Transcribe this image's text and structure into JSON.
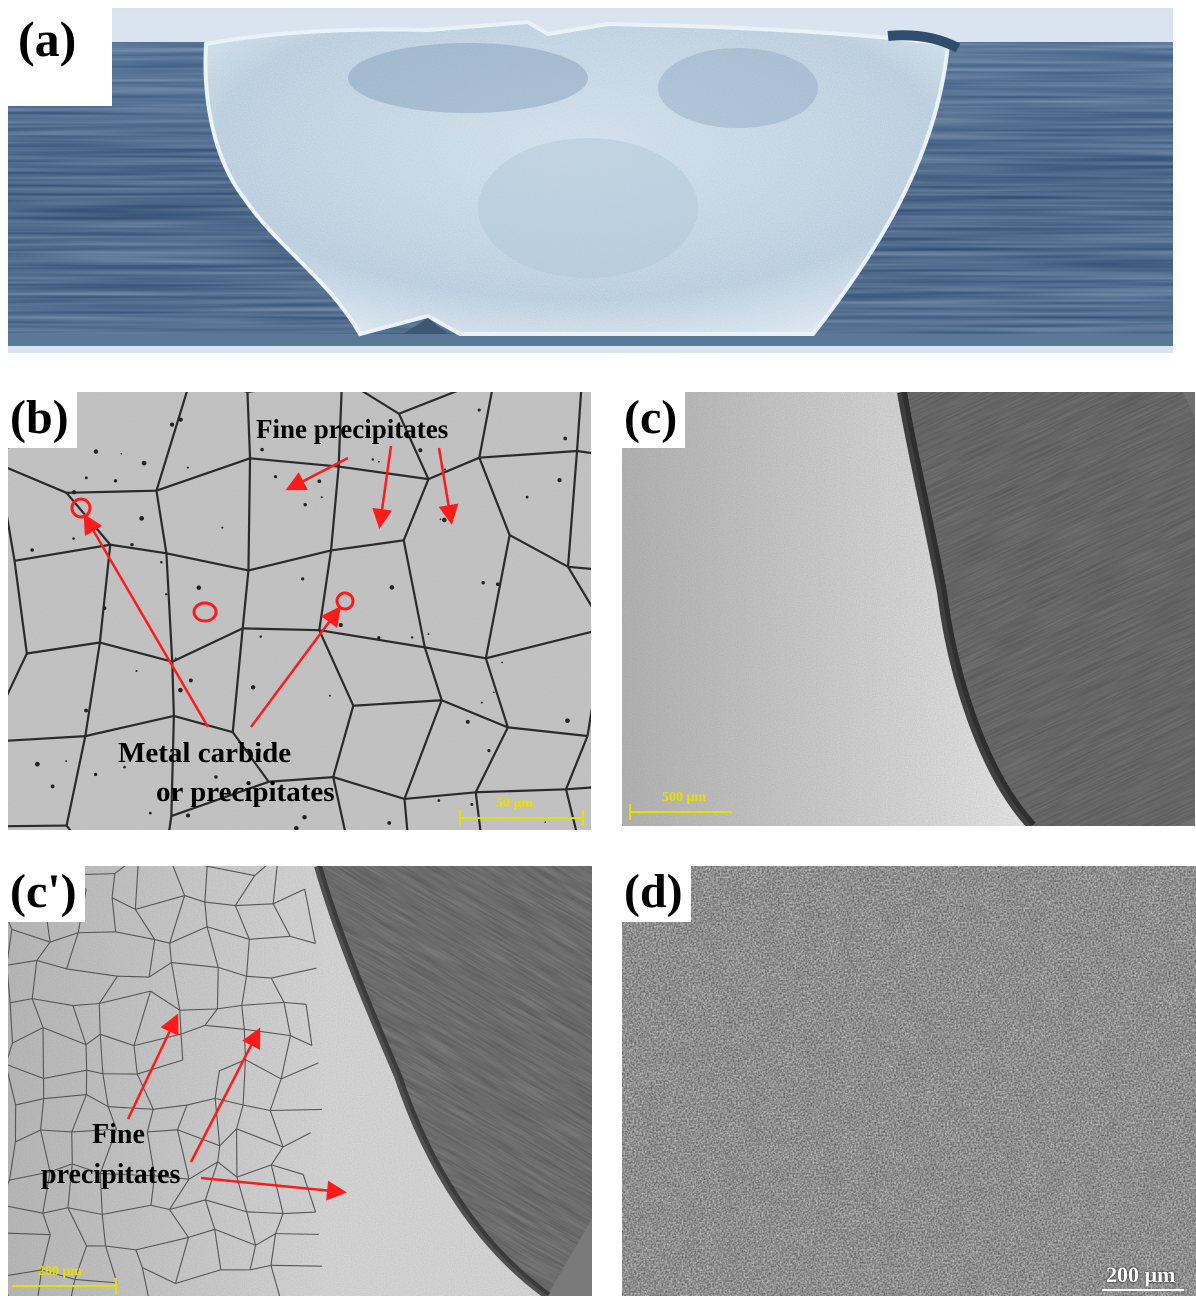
{
  "panels": {
    "a": {
      "label": "(a)"
    },
    "b": {
      "label": "(b)",
      "scale_label": "50 μm",
      "annotations": {
        "fine_precipitates": "Fine precipitates",
        "metal_carbide_line1": "Metal carbide",
        "metal_carbide_line2": "or precipitates"
      }
    },
    "c": {
      "label": "(c)",
      "scale_label": "500 μm"
    },
    "c_prime": {
      "label": "(c')",
      "scale_label": "200 μm",
      "annotations": {
        "fine_line1": "Fine",
        "fine_line2": "precipitates"
      }
    },
    "d": {
      "label": "(d)",
      "scale_label": "200 μm"
    }
  },
  "colors": {
    "annotation_arrow": "#ff1a1a",
    "scale_bar": "#e8e000",
    "macro_background": "#1f3f66",
    "weld_zone": "#c4d6e4",
    "micro_background": "#c8c8c8"
  }
}
